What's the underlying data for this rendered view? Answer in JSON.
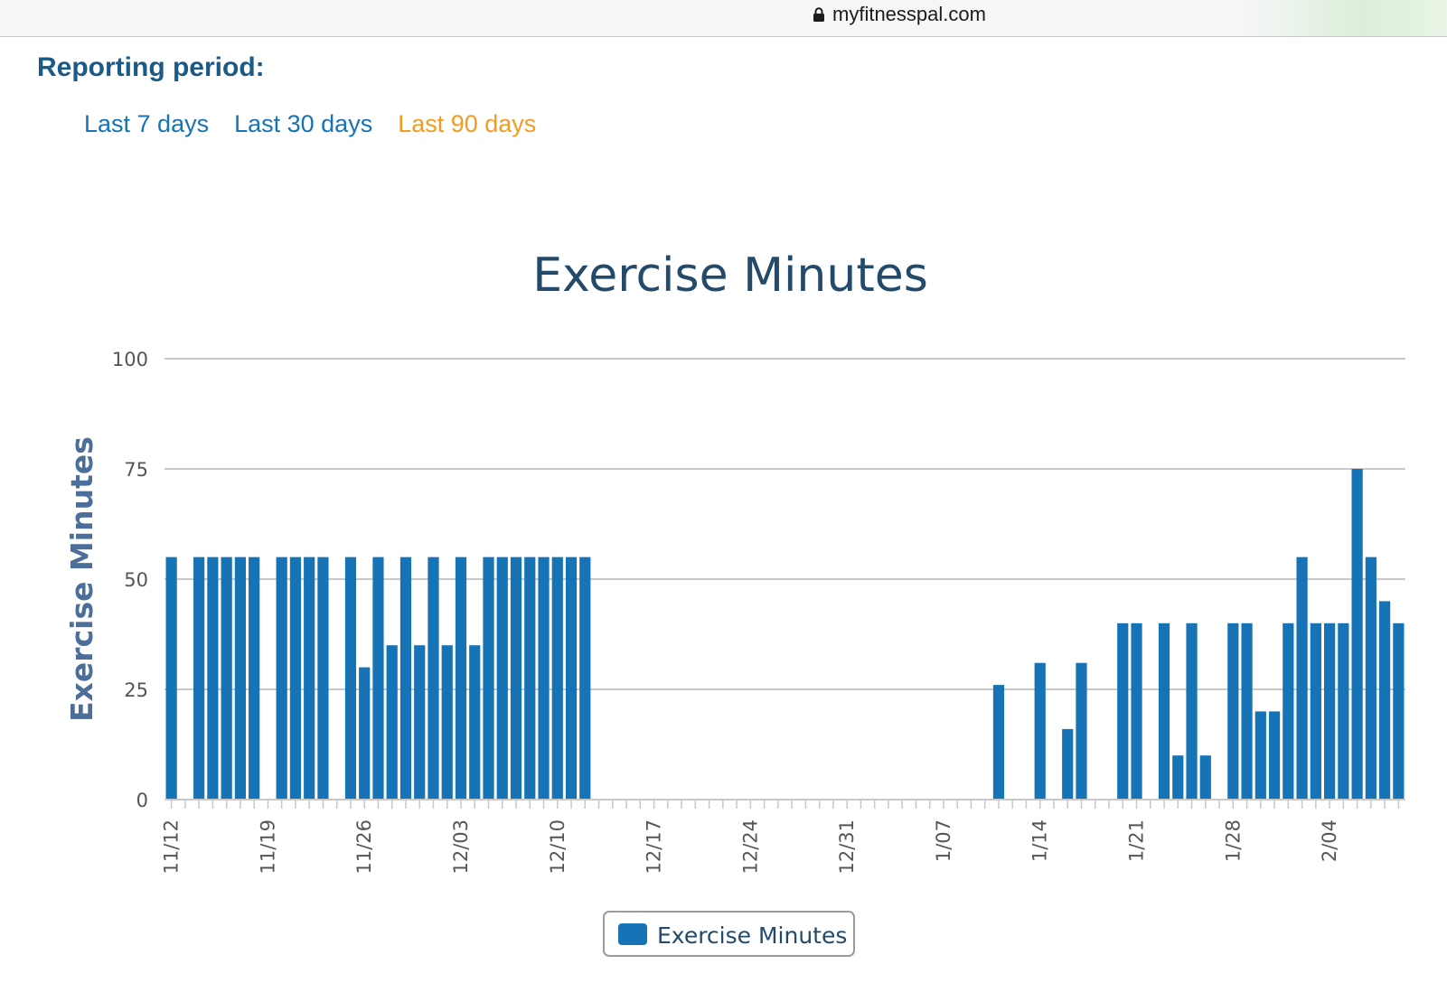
{
  "browser": {
    "url": "myfitnesspal.com"
  },
  "report": {
    "title": "Reporting period:",
    "periods": [
      {
        "label": "Last 7 days",
        "active": false
      },
      {
        "label": "Last 30 days",
        "active": false
      },
      {
        "label": "Last 90 days",
        "active": true
      }
    ]
  },
  "colors": {
    "bar": "#1573b6",
    "active_period": "#f29b1f",
    "link": "#1573b6",
    "title": "#234a6a"
  },
  "chart_data": {
    "type": "bar",
    "title": "Exercise Minutes",
    "ylabel": "Exercise Minutes",
    "xlabel": "",
    "ylim": [
      0,
      100
    ],
    "yticks": [
      0,
      25,
      50,
      75,
      100
    ],
    "grid": true,
    "legend": "bottom-center",
    "x_tick_labels": [
      "11/12",
      "11/19",
      "11/26",
      "12/03",
      "12/10",
      "12/17",
      "12/24",
      "12/31",
      "1/07",
      "1/14",
      "1/21",
      "1/28",
      "2/04"
    ],
    "categories": [
      "11/12",
      "11/13",
      "11/14",
      "11/15",
      "11/16",
      "11/17",
      "11/18",
      "11/19",
      "11/20",
      "11/21",
      "11/22",
      "11/23",
      "11/24",
      "11/25",
      "11/26",
      "11/27",
      "11/28",
      "11/29",
      "11/30",
      "12/01",
      "12/02",
      "12/03",
      "12/04",
      "12/05",
      "12/06",
      "12/07",
      "12/08",
      "12/09",
      "12/10",
      "12/11",
      "12/12",
      "12/13",
      "12/14",
      "12/15",
      "12/16",
      "12/17",
      "12/18",
      "12/19",
      "12/20",
      "12/21",
      "12/22",
      "12/23",
      "12/24",
      "12/25",
      "12/26",
      "12/27",
      "12/28",
      "12/29",
      "12/30",
      "12/31",
      "1/01",
      "1/02",
      "1/03",
      "1/04",
      "1/05",
      "1/06",
      "1/07",
      "1/08",
      "1/09",
      "1/10",
      "1/11",
      "1/12",
      "1/13",
      "1/14",
      "1/15",
      "1/16",
      "1/17",
      "1/18",
      "1/19",
      "1/20",
      "1/21",
      "1/22",
      "1/23",
      "1/24",
      "1/25",
      "1/26",
      "1/27",
      "1/28",
      "1/29",
      "1/30",
      "1/31",
      "2/01",
      "2/02",
      "2/03",
      "2/04",
      "2/05",
      "2/06",
      "2/07",
      "2/08",
      "2/09"
    ],
    "series": [
      {
        "name": "Exercise Minutes",
        "values": [
          55,
          0,
          55,
          55,
          55,
          55,
          55,
          0,
          55,
          55,
          55,
          55,
          0,
          55,
          30,
          55,
          35,
          55,
          35,
          55,
          35,
          55,
          35,
          55,
          55,
          55,
          55,
          55,
          55,
          55,
          55,
          0,
          0,
          0,
          0,
          0,
          0,
          0,
          0,
          0,
          0,
          0,
          0,
          0,
          0,
          0,
          0,
          0,
          0,
          0,
          0,
          0,
          0,
          0,
          0,
          0,
          0,
          0,
          0,
          0,
          26,
          0,
          0,
          31,
          0,
          16,
          31,
          0,
          0,
          40,
          40,
          0,
          40,
          10,
          40,
          10,
          0,
          40,
          40,
          20,
          20,
          40,
          55,
          40,
          40,
          40,
          75,
          55,
          45,
          40
        ]
      }
    ]
  }
}
